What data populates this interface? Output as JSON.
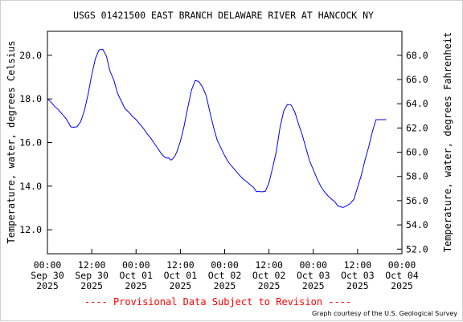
{
  "chart_data": {
    "type": "line",
    "title": "USGS 01421500 EAST BRANCH DELAWARE RIVER AT HANCOCK NY",
    "ylabel_left": "Temperature, water, degrees Celsius",
    "ylabel_right": "Temperature, water, degrees Fahrenheit",
    "xlabel": "",
    "grid": false,
    "line_color": "#0000ff",
    "left_axis": {
      "ticks": [
        12.0,
        14.0,
        16.0,
        18.0,
        20.0
      ],
      "tick_labels": [
        "12.0",
        "14.0",
        "16.0",
        "18.0",
        "20.0"
      ],
      "ylim": [
        10.9,
        21.1
      ]
    },
    "right_axis": {
      "ticks": [
        52.0,
        54.0,
        56.0,
        58.0,
        60.0,
        62.0,
        64.0,
        66.0,
        68.0
      ],
      "tick_labels": [
        "52.0",
        "54.0",
        "56.0",
        "58.0",
        "60.0",
        "62.0",
        "64.0",
        "66.0",
        "68.0"
      ]
    },
    "x_axis": {
      "xlim_hours": [
        0,
        96
      ],
      "tick_hours": [
        0,
        12,
        24,
        36,
        48,
        60,
        72,
        84,
        96
      ],
      "tick_labels": [
        [
          "00:00",
          "Sep 30",
          "2025"
        ],
        [
          "12:00",
          "Sep 30",
          "2025"
        ],
        [
          "00:00",
          "Oct 01",
          "2025"
        ],
        [
          "12:00",
          "Oct 01",
          "2025"
        ],
        [
          "00:00",
          "Oct 02",
          "2025"
        ],
        [
          "12:00",
          "Oct 02",
          "2025"
        ],
        [
          "00:00",
          "Oct 03",
          "2025"
        ],
        [
          "12:00",
          "Oct 03",
          "2025"
        ],
        [
          "00:00",
          "Oct 04",
          "2025"
        ]
      ]
    },
    "series": [
      {
        "x_hours": [
          0,
          1,
          2,
          3,
          4,
          5,
          5.9,
          6.3,
          7.1,
          8,
          9,
          10,
          11,
          12,
          13,
          14,
          15,
          16,
          16.9,
          18,
          19,
          20,
          21,
          22,
          23,
          24,
          25,
          26,
          27,
          28,
          29,
          30,
          31,
          32,
          33,
          33.2,
          33.6,
          34.4,
          35,
          36,
          37,
          38,
          39,
          40,
          41,
          42,
          43,
          44,
          45,
          46,
          47,
          48,
          49,
          50,
          51,
          52,
          53,
          54,
          55,
          55.8,
          56.6,
          57.4,
          58.2,
          59,
          60,
          61,
          62,
          63,
          64,
          65,
          66,
          67,
          68,
          69,
          70,
          71,
          72,
          73,
          74,
          75,
          76,
          77,
          78,
          78.6,
          79.4,
          80.1,
          81,
          82,
          83,
          84,
          85,
          86,
          87,
          88,
          89,
          90,
          91,
          91.8
        ],
        "y_celsius": [
          18.0,
          17.85,
          17.65,
          17.5,
          17.3,
          17.1,
          16.85,
          16.72,
          16.7,
          16.72,
          16.95,
          17.45,
          18.2,
          19.1,
          19.85,
          20.25,
          20.28,
          19.95,
          19.3,
          18.85,
          18.25,
          17.9,
          17.55,
          17.4,
          17.2,
          17.05,
          16.85,
          16.65,
          16.4,
          16.2,
          15.95,
          15.7,
          15.45,
          15.3,
          15.28,
          15.22,
          15.2,
          15.35,
          15.55,
          16.05,
          16.75,
          17.6,
          18.4,
          18.85,
          18.8,
          18.55,
          18.15,
          17.4,
          16.7,
          16.1,
          15.75,
          15.4,
          15.1,
          14.9,
          14.7,
          14.5,
          14.33,
          14.2,
          14.05,
          13.95,
          13.75,
          13.75,
          13.74,
          13.76,
          14.15,
          14.85,
          15.6,
          16.7,
          17.45,
          17.75,
          17.72,
          17.4,
          16.85,
          16.35,
          15.75,
          15.15,
          14.75,
          14.35,
          14.0,
          13.75,
          13.55,
          13.4,
          13.25,
          13.1,
          13.05,
          13.02,
          13.1,
          13.2,
          13.4,
          13.95,
          14.5,
          15.2,
          15.8,
          16.5,
          17.05,
          17.05,
          17.05,
          17.05
        ]
      }
    ]
  },
  "footer": {
    "provisional": "---- Provisional Data Subject to Revision ----",
    "credit": "Graph courtesy of the U.S. Geological Survey"
  }
}
